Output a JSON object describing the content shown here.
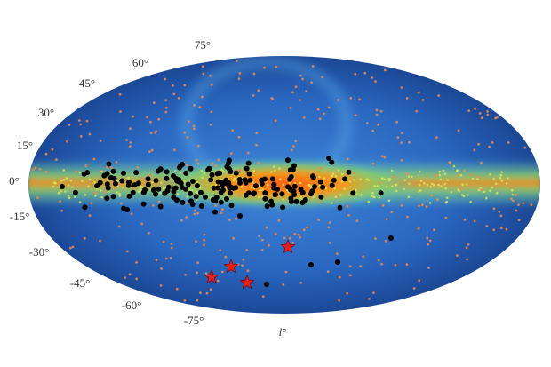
{
  "latitude_labels": [
    "75°",
    "60°",
    "45°",
    "30°",
    "15°",
    "0°",
    "-15°",
    "-30°",
    "-45°",
    "-60°",
    "-75°"
  ],
  "longitude_label": "l°"
}
